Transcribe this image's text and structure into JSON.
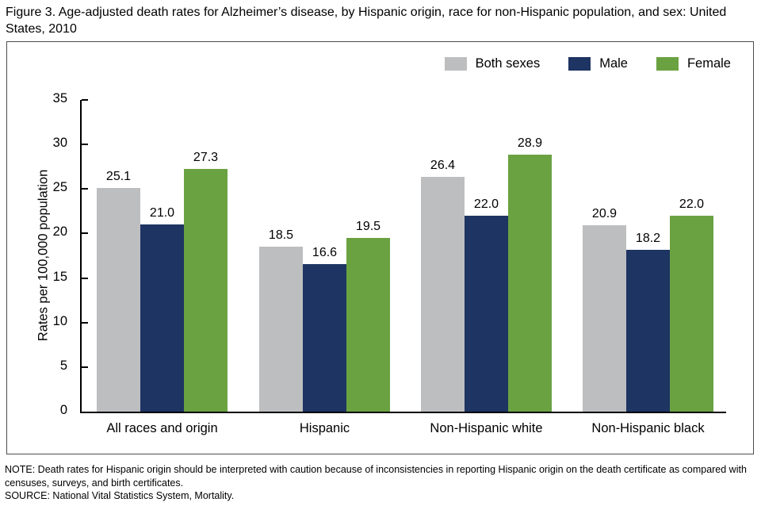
{
  "figure": {
    "title": "Figure 3. Age-adjusted death rates for Alzheimer’s disease, by Hispanic origin, race for non-Hispanic population, and sex: United States, 2010",
    "note": "NOTE: Death rates for Hispanic origin should be interpreted with caution because of inconsistencies in reporting Hispanic origin on the death certificate as compared with censuses, surveys, and birth certificates.",
    "source": "SOURCE: National Vital Statistics System, Mortality."
  },
  "chart_data": {
    "type": "bar",
    "title": "",
    "categories": [
      "All races and origin",
      "Hispanic",
      "Non-Hispanic white",
      "Non-Hispanic black"
    ],
    "series": [
      {
        "name": "Both sexes",
        "color": "#bdbec0",
        "values": [
          25.1,
          18.5,
          26.4,
          20.9
        ]
      },
      {
        "name": "Male",
        "color": "#1e3462",
        "values": [
          21.0,
          16.6,
          22.0,
          18.2
        ]
      },
      {
        "name": "Female",
        "color": "#6aa242",
        "values": [
          27.3,
          19.5,
          28.9,
          22.0
        ]
      }
    ],
    "xlabel": "",
    "ylabel": "Rates per 100,000 population",
    "ylim": [
      0,
      35
    ],
    "ytick_step": 5,
    "grid": false,
    "legend_position": "top-right",
    "value_labels": true,
    "value_label_decimals": 1,
    "axis_color": "#000000",
    "frame_border_color": "#4d4d4f"
  }
}
